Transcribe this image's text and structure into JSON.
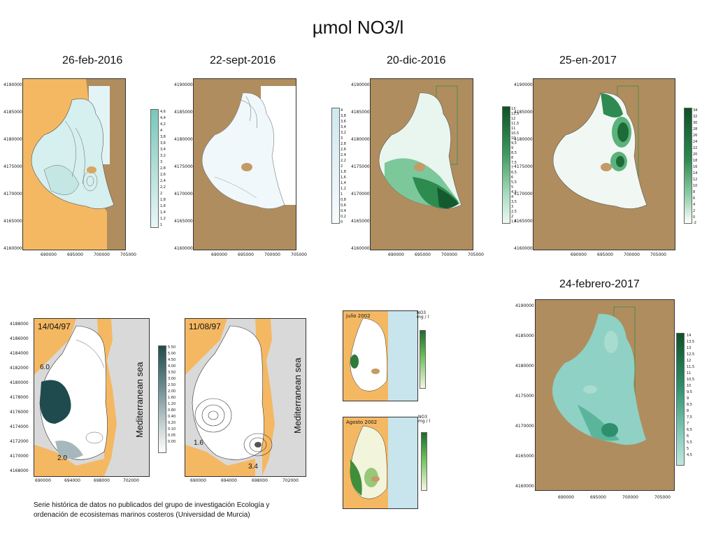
{
  "title": "µmol NO3/l",
  "maps_top": [
    {
      "date": "26-feb-2016",
      "yticks": [
        "4190000",
        "4185000",
        "4180000",
        "4175000",
        "4170000",
        "4165000",
        "4160000"
      ],
      "xticks": [
        "690000",
        "695000",
        "700000",
        "705000"
      ],
      "colorbar": [
        "4,6",
        "4,4",
        "4,2",
        "4",
        "3,8",
        "3,6",
        "3,4",
        "3,2",
        "3",
        "2,8",
        "2,6",
        "2,4",
        "2,2",
        "2",
        "1,8",
        "1,6",
        "1,4",
        "1,2",
        "1"
      ]
    },
    {
      "date": "22-sept-2016",
      "yticks": [
        "4190000",
        "4185000",
        "4180000",
        "4175000",
        "4170000",
        "4165000",
        "4160000"
      ],
      "xticks": [
        "690000",
        "695000",
        "700000",
        "705000"
      ],
      "colorbar": [
        "4",
        "3,8",
        "3,6",
        "3,4",
        "3,2",
        "3",
        "2,8",
        "2,6",
        "2,4",
        "2,2",
        "2",
        "1,8",
        "1,6",
        "1,4",
        "1,2",
        "1",
        "0,8",
        "0,6",
        "0,4",
        "0,2",
        "0"
      ]
    },
    {
      "date": "20-dic-2016",
      "yticks": [
        "4190000",
        "4185000",
        "4180000",
        "4175000",
        "4170000",
        "4165000",
        "4160000"
      ],
      "xticks": [
        "690000",
        "695000",
        "700000",
        "705000"
      ],
      "colorbar": [
        "13",
        "12,5",
        "12",
        "11,5",
        "11",
        "10,5",
        "10",
        "9,5",
        "9",
        "8,5",
        "8",
        "7,5",
        "7",
        "6,5",
        "6",
        "5,5",
        "5",
        "4,5",
        "4",
        "3,5",
        "3",
        "2,5",
        "2",
        "1,5"
      ]
    },
    {
      "date": "25-en-2017",
      "yticks": [
        "4190000",
        "4185000",
        "4180000",
        "4175000",
        "4170000",
        "4165000",
        "4160000"
      ],
      "xticks": [
        "690000",
        "695000",
        "700000",
        "705000"
      ],
      "colorbar": [
        "34",
        "32",
        "30",
        "28",
        "26",
        "24",
        "22",
        "20",
        "18",
        "16",
        "14",
        "12",
        "10",
        "8",
        "6",
        "4",
        "2",
        "0",
        "-2"
      ]
    }
  ],
  "map_feb2017": {
    "date": "24-febrero-2017",
    "yticks": [
      "4190000",
      "4185000",
      "4180000",
      "4175000",
      "4170000",
      "4165000",
      "4160000"
    ],
    "xticks": [
      "690000",
      "695000",
      "700000",
      "705000"
    ],
    "colorbar": [
      "14",
      "13,5",
      "13",
      "12,5",
      "12",
      "11,5",
      "11",
      "10,5",
      "10",
      "9,5",
      "9",
      "8,5",
      "8",
      "7,5",
      "7",
      "6,5",
      "6",
      "5,5",
      "5",
      "4,5"
    ]
  },
  "map_1997_a": {
    "date": "14/04/97",
    "sea": "Mediterranean sea",
    "yticks": [
      "4188000",
      "4186000",
      "4184000",
      "4182000",
      "4180000",
      "4178000",
      "4176000",
      "4174000",
      "4172000",
      "4170000",
      "4168000"
    ],
    "xticks": [
      "690000",
      "694000",
      "698000",
      "702000"
    ],
    "labels": [
      "6.0",
      "2.0"
    ],
    "colorbar": [
      "5.50",
      "5.00",
      "4.50",
      "4.00",
      "3.50",
      "3.00",
      "2.50",
      "2.00",
      "1.60",
      "1.20",
      "0.80",
      "0.40",
      "0.20",
      "0.10",
      "0.05",
      "0.00"
    ]
  },
  "map_1997_b": {
    "date": "11/08/97",
    "sea": "Mediterranean sea",
    "xticks": [
      "690000",
      "694000",
      "698000",
      "702000"
    ],
    "labels": [
      "1.6",
      "3.4"
    ]
  },
  "map_2002_a": {
    "date": "julio 2002",
    "unit": "NO3 mg / l"
  },
  "map_2002_b": {
    "date": "Agosto 2002",
    "unit": "NO3 mg / l"
  },
  "footnote": "Serie histórica de datos no publicados del grupo de investigación Ecología y ordenación de ecosistemas marinos costeros (Universidad de Murcia)",
  "colors": {
    "land_brown": "#b08d5e",
    "land_orange": "#f5b862",
    "teal": "#8fd1c4",
    "green_dark": "#1f6f3a",
    "green_light": "#e8f5ec",
    "gray": "#d6d6d6"
  }
}
